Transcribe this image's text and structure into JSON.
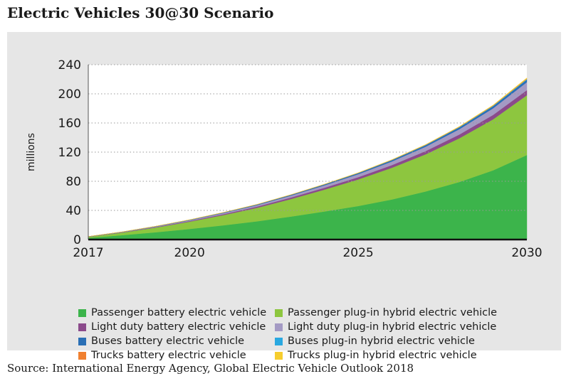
{
  "title": "Electric Vehicles 30@30 Scenario",
  "source": "Source: International Energy Agency, Global Electric Vehicle Outlook 2018",
  "chart_data": {
    "type": "area",
    "stacked": true,
    "title": "Electric Vehicles 30@30 Scenario",
    "ylabel": "millions",
    "xlabel": "",
    "x": [
      2017,
      2018,
      2019,
      2020,
      2021,
      2022,
      2023,
      2024,
      2025,
      2026,
      2027,
      2028,
      2029,
      2030
    ],
    "xticks": [
      2017,
      2020,
      2025,
      2030
    ],
    "yticks": [
      0,
      40,
      80,
      120,
      160,
      200,
      240
    ],
    "ylim": [
      0,
      240
    ],
    "grid": "horizontal dotted",
    "legend_placement": "bottom",
    "series": [
      {
        "name": "Passenger battery electric vehicle",
        "color": "#3cb44b",
        "values": [
          2.3,
          6,
          10,
          14.5,
          19.5,
          25,
          31.5,
          38.5,
          46,
          55,
          66,
          79,
          95,
          116
        ]
      },
      {
        "name": "Passenger plug-in hybrid electric vehicle",
        "color": "#8dc63f",
        "values": [
          1.3,
          3.5,
          6.5,
          10,
          14,
          18.5,
          24,
          30,
          36.5,
          43.5,
          51,
          60,
          70,
          82
        ]
      },
      {
        "name": "Light duty battery electric vehicle",
        "color": "#8b4a8b",
        "values": [
          0.1,
          0.3,
          0.6,
          0.9,
          1.3,
          1.7,
          2.1,
          2.6,
          3.1,
          3.7,
          4.4,
          5.2,
          6.1,
          7
        ]
      },
      {
        "name": "Light duty plug-in hybrid electric vehicle",
        "color": "#a49ac4",
        "values": [
          0.1,
          0.3,
          0.6,
          1,
          1.5,
          2,
          2.6,
          3.3,
          4.1,
          5,
          6,
          7.3,
          9,
          11
        ]
      },
      {
        "name": "Buses battery electric vehicle",
        "color": "#2a6fb5",
        "values": [
          0.35,
          0.4,
          0.5,
          0.6,
          0.7,
          0.85,
          1,
          1.2,
          1.4,
          1.7,
          2,
          2.4,
          2.8,
          3.3
        ]
      },
      {
        "name": "Buses plug-in hybrid electric vehicle",
        "color": "#29a8e0",
        "values": [
          0.01,
          0.02,
          0.03,
          0.05,
          0.07,
          0.1,
          0.13,
          0.17,
          0.22,
          0.28,
          0.35,
          0.45,
          0.6,
          0.8
        ]
      },
      {
        "name": "Trucks battery electric vehicle",
        "color": "#f08030",
        "values": [
          0.005,
          0.01,
          0.02,
          0.03,
          0.05,
          0.07,
          0.1,
          0.13,
          0.17,
          0.22,
          0.28,
          0.35,
          0.45,
          0.6
        ]
      },
      {
        "name": "Trucks plug-in hybrid electric vehicle",
        "color": "#f6cd2e",
        "values": [
          0.005,
          0.01,
          0.02,
          0.04,
          0.06,
          0.09,
          0.13,
          0.18,
          0.24,
          0.32,
          0.42,
          0.55,
          0.7,
          1.2
        ]
      }
    ]
  }
}
